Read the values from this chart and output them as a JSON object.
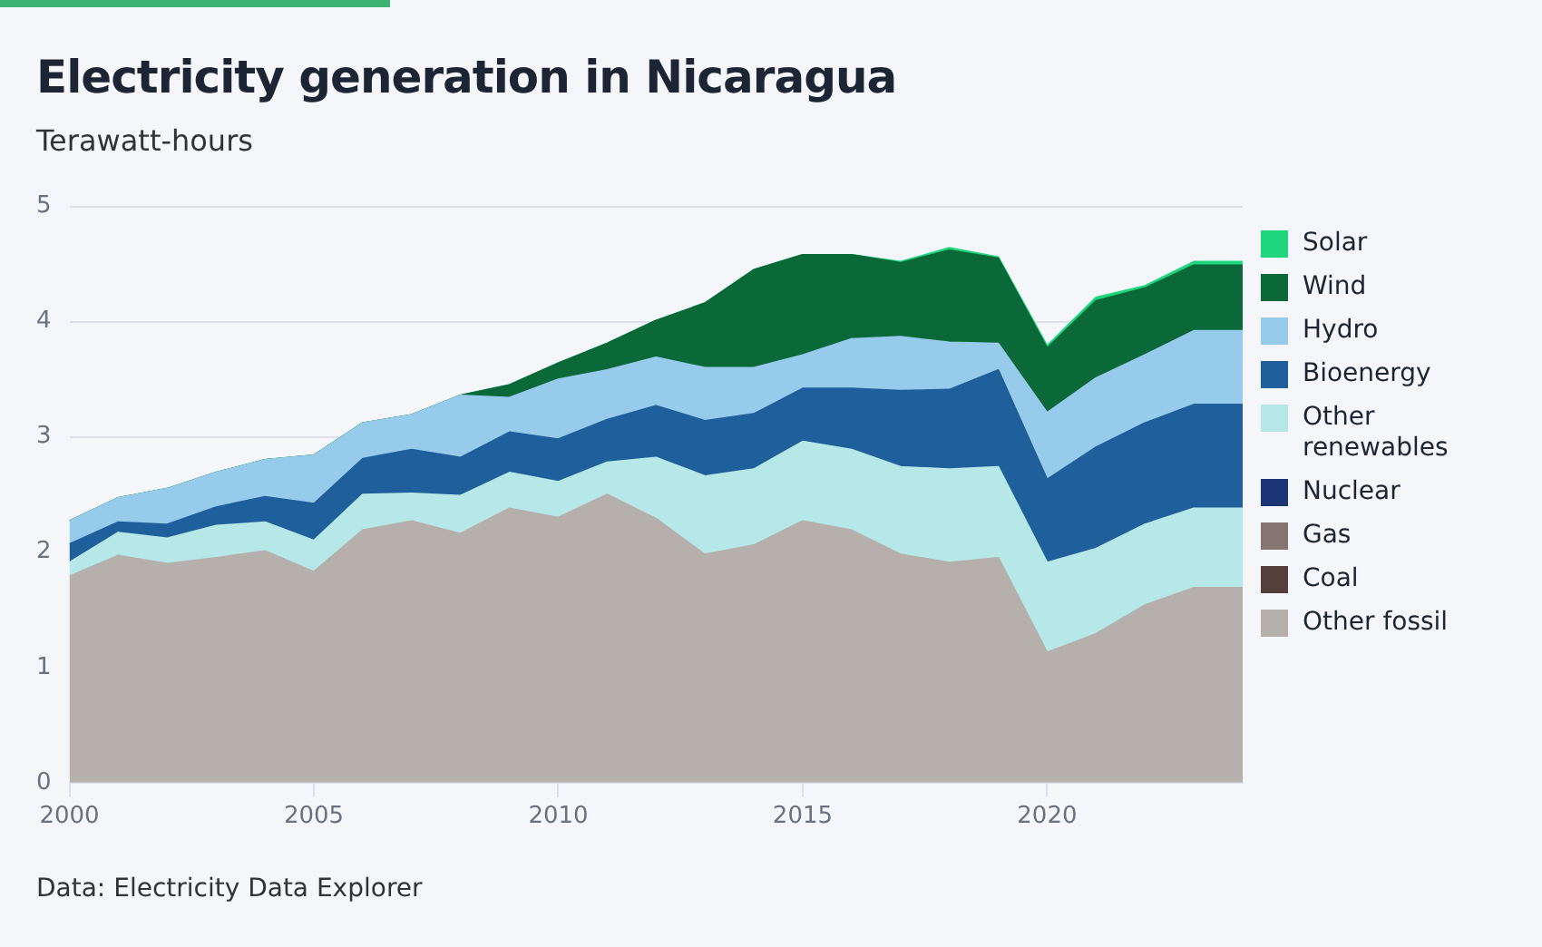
{
  "chart_data": {
    "type": "area",
    "title": "Electricity generation in Nicaragua",
    "subtitle": "Terawatt-hours",
    "annotations": [
      "Data: Electricity Data Explorer"
    ],
    "x": [
      2000,
      2001,
      2002,
      2003,
      2004,
      2005,
      2006,
      2007,
      2008,
      2009,
      2010,
      2011,
      2012,
      2013,
      2014,
      2015,
      2016,
      2017,
      2018,
      2019,
      2020,
      2021,
      2022,
      2023,
      2024
    ],
    "stacked": true,
    "xlim": [
      2000,
      2024
    ],
    "xticks": [
      2000,
      2005,
      2010,
      2015,
      2020
    ],
    "ylim": [
      0,
      5
    ],
    "yticks": [
      0,
      1,
      2,
      3,
      4,
      5
    ],
    "grid": "y",
    "legend": "right",
    "marker": "none",
    "series": [
      {
        "name": "Other fossil",
        "color": "#b6b0ad",
        "values": [
          1.79,
          1.97,
          1.9,
          1.95,
          2.01,
          1.83,
          2.19,
          2.27,
          2.16,
          2.38,
          2.3,
          2.5,
          2.29,
          1.98,
          2.06,
          2.27,
          2.19,
          1.98,
          1.91,
          1.95,
          1.13,
          1.29,
          1.54,
          1.69,
          1.69
        ]
      },
      {
        "name": "Coal",
        "color": "#553f3a",
        "values": [
          null,
          null,
          null,
          null,
          null,
          null,
          null,
          null,
          null,
          null,
          null,
          null,
          null,
          null,
          null,
          null,
          null,
          null,
          null,
          null,
          null,
          null,
          null,
          null,
          null
        ]
      },
      {
        "name": "Gas",
        "color": "#857570",
        "values": [
          null,
          null,
          null,
          null,
          null,
          null,
          null,
          null,
          null,
          null,
          null,
          null,
          null,
          null,
          null,
          null,
          null,
          null,
          null,
          null,
          null,
          null,
          null,
          null,
          null
        ]
      },
      {
        "name": "Nuclear",
        "color": "#1c3675",
        "values": [
          null,
          null,
          null,
          null,
          null,
          null,
          null,
          null,
          null,
          null,
          null,
          null,
          null,
          null,
          null,
          null,
          null,
          null,
          null,
          null,
          null,
          null,
          null,
          null,
          null
        ]
      },
      {
        "name": "Other renewables",
        "color": "#b5e8e6",
        "values": [
          0.12,
          0.2,
          0.22,
          0.28,
          0.25,
          0.27,
          0.31,
          0.24,
          0.33,
          0.31,
          0.31,
          0.28,
          0.53,
          0.68,
          0.66,
          0.69,
          0.7,
          0.76,
          0.81,
          0.79,
          0.78,
          0.74,
          0.7,
          0.69,
          0.69
        ]
      },
      {
        "name": "Bioenergy",
        "color": "#1f5f9b",
        "values": [
          0.16,
          0.09,
          0.12,
          0.16,
          0.22,
          0.32,
          0.31,
          0.38,
          0.33,
          0.35,
          0.37,
          0.37,
          0.45,
          0.48,
          0.48,
          0.46,
          0.53,
          0.66,
          0.69,
          0.84,
          0.72,
          0.88,
          0.88,
          0.9,
          0.9
        ]
      },
      {
        "name": "Hydro",
        "color": "#97cbec",
        "values": [
          0.2,
          0.21,
          0.31,
          0.3,
          0.32,
          0.42,
          0.31,
          0.3,
          0.54,
          0.3,
          0.52,
          0.43,
          0.42,
          0.46,
          0.4,
          0.29,
          0.43,
          0.47,
          0.41,
          0.23,
          0.58,
          0.6,
          0.59,
          0.64,
          0.64
        ]
      },
      {
        "name": "Wind",
        "color": "#0b6838",
        "values": [
          0,
          0,
          0,
          0,
          0,
          0,
          0,
          0,
          0,
          0.11,
          0.14,
          0.23,
          0.32,
          0.56,
          0.85,
          0.87,
          0.73,
          0.64,
          0.8,
          0.74,
          0.56,
          0.67,
          0.58,
          0.57,
          0.57
        ]
      },
      {
        "name": "Solar",
        "color": "#1ed77c",
        "values": [
          0,
          0,
          0,
          0,
          0,
          0,
          0,
          0,
          0,
          0,
          0,
          0,
          0,
          0,
          0,
          0,
          0,
          0.01,
          0.02,
          0.01,
          0.02,
          0.03,
          0.02,
          0.03,
          0.03
        ]
      }
    ]
  }
}
